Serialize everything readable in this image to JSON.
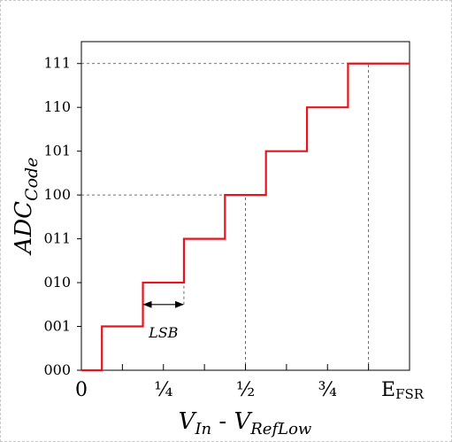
{
  "chart_data": {
    "type": "line",
    "step": true,
    "xlabel": {
      "main": "V",
      "sub1": "In",
      "sep": " - ",
      "main2": "V",
      "sub2": "RefLow"
    },
    "ylabel": {
      "main": "ADC",
      "sub": "Code"
    },
    "xlim": [
      0,
      8
    ],
    "ylim": [
      0,
      7.5
    ],
    "x_ticks": [
      {
        "value": 0,
        "label": "0"
      },
      {
        "value": 2,
        "label": "¼"
      },
      {
        "value": 4,
        "label": "½"
      },
      {
        "value": 6,
        "label": "¾"
      },
      {
        "value": 8,
        "label": "E",
        "label_sub": "FSR"
      }
    ],
    "x_minor_ticks": [
      1,
      3,
      5,
      7
    ],
    "y_ticks": [
      {
        "value": 0,
        "label": "000"
      },
      {
        "value": 1,
        "label": "001"
      },
      {
        "value": 2,
        "label": "010"
      },
      {
        "value": 3,
        "label": "011"
      },
      {
        "value": 4,
        "label": "100"
      },
      {
        "value": 5,
        "label": "101"
      },
      {
        "value": 6,
        "label": "110"
      },
      {
        "value": 7,
        "label": "111"
      }
    ],
    "series": [
      {
        "color": "#e8141c",
        "x": [
          0,
          0.5,
          0.5,
          1.5,
          1.5,
          2.5,
          2.5,
          3.5,
          3.5,
          4.5,
          4.5,
          5.5,
          5.5,
          6.5,
          6.5,
          8
        ],
        "y": [
          0,
          0,
          1,
          1,
          2,
          2,
          3,
          3,
          4,
          4,
          5,
          5,
          6,
          6,
          7,
          7
        ]
      }
    ],
    "reference_lines": [
      {
        "type": "horizontal",
        "y": 7,
        "x_to": 7
      },
      {
        "type": "horizontal",
        "y": 4,
        "x_to": 4
      },
      {
        "type": "vertical",
        "x": 7,
        "y_to": 7
      },
      {
        "type": "vertical",
        "x": 4,
        "y_to": 4
      },
      {
        "type": "vertical",
        "x": 2.5,
        "y_from": 1.5,
        "y_to": 3
      },
      {
        "type": "vertical",
        "x": 1.5,
        "y_from": 1.5,
        "y_to": 2
      }
    ],
    "annotation": {
      "text": "LSB",
      "x_from": 1.5,
      "x_to": 2.5,
      "y": 1.5
    },
    "grid": false
  }
}
